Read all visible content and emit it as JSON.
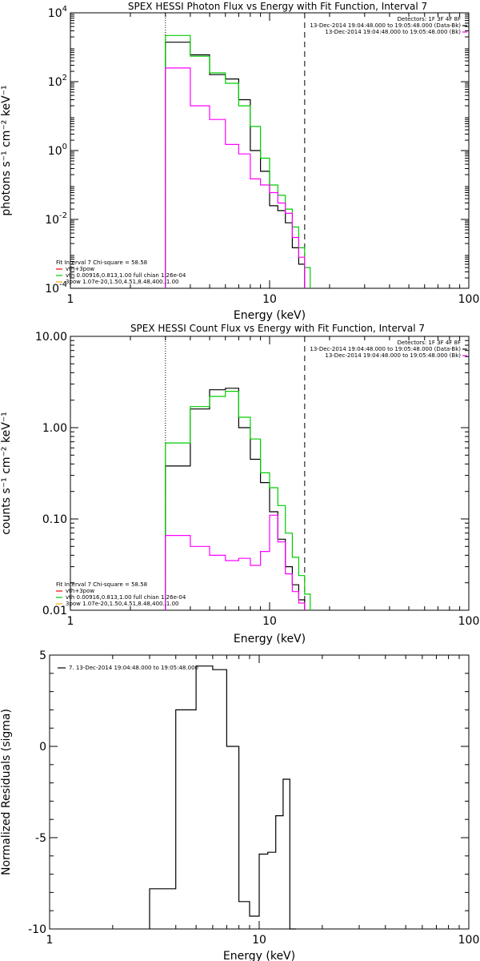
{
  "chart_data": [
    {
      "type": "line",
      "title": "SPEX HESSI Photon Flux vs Energy with Fit Function, Interval 7",
      "xlabel": "Energy (keV)",
      "ylabel": "photons s⁻¹ cm⁻² keV⁻¹",
      "xscale": "log",
      "yscale": "log",
      "xlim": [
        1,
        100
      ],
      "ylim": [
        0.0001,
        10000
      ],
      "x_ticks": [
        {
          "value": 1,
          "label": "1"
        },
        {
          "value": 10,
          "label": "10"
        },
        {
          "value": 100,
          "label": "100"
        }
      ],
      "y_ticks": [
        {
          "value": 10000,
          "base": "10",
          "exp": "4"
        },
        {
          "value": 100,
          "base": "10",
          "exp": "2"
        },
        {
          "value": 1,
          "base": "10",
          "exp": "0"
        },
        {
          "value": 0.01,
          "base": "10",
          "exp": "-2"
        },
        {
          "value": 0.0001,
          "base": "10",
          "exp": "-4"
        }
      ],
      "vlines": [
        {
          "x": 3.0,
          "style": "dotted"
        },
        {
          "x": 15.0,
          "style": "dashed"
        }
      ],
      "legend_top_right": [
        {
          "text": "Detectors: 1F 3F 4F 8F",
          "color": ""
        },
        {
          "text": "13-Dec-2014 19:04:48.000 to 19:05:48.000 (Data-Bk)",
          "color": "#000000"
        },
        {
          "text": "13-Dec-2014 19:04:48.000 to 19:05:48.000 (Bk)",
          "color": "#ff00ff"
        }
      ],
      "legend_bottom_left": [
        {
          "text": "Fit Interval  7    Chi-square = 58.58",
          "color": ""
        },
        {
          "text": "vth+3pow",
          "color": "#ff0000"
        },
        {
          "text": "vth 0.00916,0.813,1.00   full chian 1.26e-04",
          "color": "#00cc00"
        },
        {
          "text": "3pow 1.07e-20,1.50,4.51,8.48,400.,1.00",
          "color": "#ffaa00"
        }
      ],
      "series": [
        {
          "color": "#000000",
          "edges": [
            3,
            4,
            5,
            6,
            7,
            8,
            9,
            10,
            11,
            12,
            13,
            14,
            15
          ],
          "values": [
            1400,
            600,
            160,
            120,
            30,
            1.0,
            0.25,
            0.025,
            0.018,
            0.008,
            0.0015,
            0.0005
          ]
        },
        {
          "color": "#00cc00",
          "edges": [
            3,
            4,
            5,
            6,
            7,
            8,
            9,
            10,
            11,
            12,
            13,
            14,
            15,
            16
          ],
          "values": [
            2200,
            550,
            180,
            90,
            20,
            5,
            0.6,
            0.1,
            0.05,
            0.02,
            0.006,
            0.0015,
            0.0004
          ]
        },
        {
          "color": "#ff00ff",
          "edges": [
            3,
            4,
            5,
            6,
            7,
            8,
            9,
            10,
            11,
            12,
            13,
            14,
            15
          ],
          "values": [
            250,
            20,
            8.0,
            1.5,
            0.8,
            0.15,
            0.1,
            0.06,
            0.03,
            0.015,
            0.003,
            0.0008
          ]
        }
      ]
    },
    {
      "type": "line",
      "title": "SPEX HESSI Count Flux vs Energy with Fit Function, Interval 7",
      "xlabel": "Energy (keV)",
      "ylabel": "counts s⁻¹ cm⁻² keV⁻¹",
      "xscale": "log",
      "yscale": "log",
      "xlim": [
        1,
        100
      ],
      "ylim": [
        0.01,
        10
      ],
      "x_ticks": [
        {
          "value": 1,
          "label": "1"
        },
        {
          "value": 10,
          "label": "10"
        },
        {
          "value": 100,
          "label": "100"
        }
      ],
      "y_ticks": [
        {
          "value": 10,
          "label": "10.00"
        },
        {
          "value": 1,
          "label": "1.00"
        },
        {
          "value": 0.1,
          "label": "0.10"
        },
        {
          "value": 0.01,
          "label": "0.01"
        }
      ],
      "vlines": [
        {
          "x": 3.0,
          "style": "dotted"
        },
        {
          "x": 15.0,
          "style": "dashed"
        }
      ],
      "legend_top_right": [
        {
          "text": "Detectors: 1F 3F 4F 8F",
          "color": ""
        },
        {
          "text": "13-Dec-2014 19:04:48.000 to 19:05:48.000 (Data-Bk)",
          "color": "#000000"
        },
        {
          "text": "13-Dec-2014 19:04:48.000 to 19:05:48.000 (Bk)",
          "color": "#ff00ff"
        }
      ],
      "legend_bottom_left": [
        {
          "text": "Fit Interval  7    Chi-square = 58.58",
          "color": ""
        },
        {
          "text": "vth+3pow",
          "color": "#ff0000"
        },
        {
          "text": "vth 0.00916,0.813,1.00   full chian 1.26e-04",
          "color": "#00cc00"
        },
        {
          "text": "3pow 1.07e-20,1.50,4.51,8.48,400.,1.00",
          "color": "#ffaa00"
        }
      ],
      "series": [
        {
          "color": "#000000",
          "edges": [
            3,
            4,
            5,
            6,
            7,
            8,
            9,
            10,
            11,
            12,
            13,
            14,
            15
          ],
          "values": [
            0.38,
            1.6,
            2.6,
            2.7,
            1.0,
            0.45,
            0.25,
            0.12,
            0.06,
            0.03,
            0.019,
            0.013
          ]
        },
        {
          "color": "#00cc00",
          "edges": [
            3,
            4,
            5,
            6,
            7,
            8,
            9,
            10,
            11,
            12,
            13,
            14,
            15,
            16
          ],
          "values": [
            0.68,
            1.7,
            2.2,
            2.5,
            1.3,
            0.75,
            0.32,
            0.22,
            0.14,
            0.07,
            0.038,
            0.024,
            0.015
          ]
        },
        {
          "color": "#ff00ff",
          "edges": [
            3,
            4,
            5,
            6,
            7,
            8,
            9,
            10,
            11,
            12,
            13,
            14,
            15
          ],
          "values": [
            0.066,
            0.05,
            0.04,
            0.035,
            0.037,
            0.031,
            0.044,
            0.11,
            0.056,
            0.025,
            0.016,
            0.012
          ]
        }
      ]
    },
    {
      "type": "line",
      "title": "",
      "xlabel": "Energy (keV)",
      "ylabel": "Normalized Residuals (sigma)",
      "xscale": "log",
      "yscale": "linear",
      "xlim": [
        1,
        100
      ],
      "ylim": [
        -10,
        5
      ],
      "x_ticks": [
        {
          "value": 1,
          "label": "1"
        },
        {
          "value": 10,
          "label": "10"
        },
        {
          "value": 100,
          "label": "100"
        }
      ],
      "y_ticks": [
        {
          "value": 5,
          "label": "5"
        },
        {
          "value": 0,
          "label": "0"
        },
        {
          "value": -5,
          "label": "-5"
        },
        {
          "value": -10,
          "label": "-10"
        }
      ],
      "legend": "7. 13-Dec-2014 19:04:48.000 to 19:05:48.000",
      "series": [
        {
          "color": "#000000",
          "edges": [
            3,
            4,
            5,
            6,
            7,
            8,
            9,
            10,
            11,
            12,
            13,
            14,
            15
          ],
          "values": [
            -7.8,
            2.0,
            4.4,
            4.2,
            0.0,
            -8.5,
            -9.3,
            -5.9,
            -5.8,
            -3.8,
            -1.8,
            -10.0
          ]
        }
      ]
    }
  ]
}
